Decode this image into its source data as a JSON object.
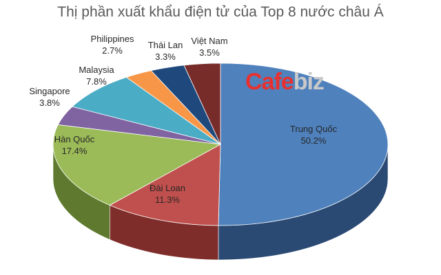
{
  "chart_data": {
    "type": "pie",
    "title": "Thị phần xuất khẩu điện tử của Top 8 nước châu Á",
    "slices": [
      {
        "name": "Trung Quốc",
        "value": 50.2,
        "label": "50.2%",
        "color": "#4f81bd",
        "side": "#2a4a74"
      },
      {
        "name": "Đài Loan",
        "value": 11.3,
        "label": "11.3%",
        "color": "#c0504d",
        "side": "#7f2d2a"
      },
      {
        "name": "Hàn Quốc",
        "value": 17.4,
        "label": "17.4%",
        "color": "#9bbb59",
        "side": "#5f7a2e"
      },
      {
        "name": "Singapore",
        "value": 3.8,
        "label": "3.8%",
        "color": "#8064a2",
        "side": "#4f3b69"
      },
      {
        "name": "Malaysia",
        "value": 7.8,
        "label": "7.8%",
        "color": "#4bacc6",
        "side": "#2a7083"
      },
      {
        "name": "Philippines",
        "value": 2.7,
        "label": "2.7%",
        "color": "#f79646",
        "side": "#b8641f"
      },
      {
        "name": "Thái Lan",
        "value": 3.3,
        "label": "3.3%",
        "color": "#1f497d",
        "side": "#10294a"
      },
      {
        "name": "Việt Nam",
        "value": 3.5,
        "label": "3.5%",
        "color": "#772c2a",
        "side": "#461817"
      }
    ],
    "legend": "none"
  },
  "watermark": {
    "part1": "Cafe",
    "part2": "biz"
  }
}
